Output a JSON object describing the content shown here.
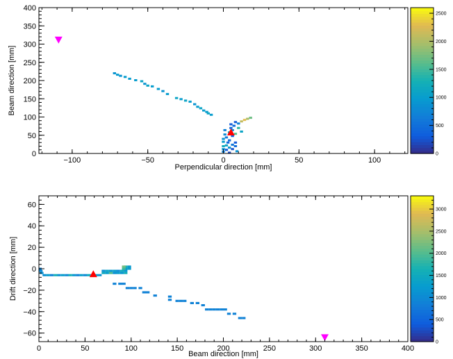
{
  "chart_data": [
    {
      "type": "heatmap",
      "xlabel": "Perpendicular direction [mm]",
      "ylabel": "Beam direction [mm]",
      "xlim": [
        -122,
        122
      ],
      "ylim": [
        0,
        400
      ],
      "xticks": [
        -100,
        -50,
        0,
        50,
        100
      ],
      "yticks": [
        0,
        50,
        100,
        150,
        200,
        250,
        300,
        350,
        400
      ],
      "xtick_labels": [
        "−100",
        "−50",
        "0",
        "50",
        "100"
      ],
      "ytick_labels": [
        "0",
        "50",
        "100",
        "150",
        "200",
        "250",
        "300",
        "350",
        "400"
      ],
      "zlim": [
        0,
        2600
      ],
      "colorbar_ticks": [
        0,
        500,
        1000,
        1500,
        2000,
        2500
      ],
      "colorbar_tick_labels": [
        "0",
        "500",
        "1000",
        "1500",
        "2000",
        "2500"
      ],
      "bin_width": 2,
      "bin_height": 4,
      "cells": [
        [
          -72,
          220,
          900
        ],
        [
          -70,
          216,
          1000
        ],
        [
          -68,
          213,
          900
        ],
        [
          -65,
          210,
          1000
        ],
        [
          -62,
          205,
          1000
        ],
        [
          -58,
          201,
          1000
        ],
        [
          -54,
          198,
          1100
        ],
        [
          -52,
          191,
          900
        ],
        [
          -50,
          186,
          1100
        ],
        [
          -47,
          184,
          1000
        ],
        [
          -43,
          177,
          1000
        ],
        [
          -40,
          171,
          900
        ],
        [
          -37,
          163,
          1000
        ],
        [
          -31,
          152,
          1100
        ],
        [
          -28,
          149,
          1000
        ],
        [
          -25,
          145,
          1100
        ],
        [
          -22,
          142,
          1000
        ],
        [
          -19,
          135,
          900
        ],
        [
          -17,
          128,
          1000
        ],
        [
          -15,
          124,
          1100
        ],
        [
          -13,
          118,
          1000
        ],
        [
          -11,
          114,
          1000
        ],
        [
          -10,
          110,
          1100
        ],
        [
          -8,
          106,
          1000
        ],
        [
          0,
          5,
          700
        ],
        [
          0,
          12,
          900
        ],
        [
          0,
          20,
          1200
        ],
        [
          0,
          32,
          1000
        ],
        [
          0,
          40,
          900
        ],
        [
          1,
          52,
          800
        ],
        [
          1,
          64,
          700
        ],
        [
          2,
          10,
          300
        ],
        [
          2,
          22,
          1100
        ],
        [
          2,
          44,
          600
        ],
        [
          3,
          30,
          400
        ],
        [
          4,
          2,
          200
        ],
        [
          4,
          16,
          900
        ],
        [
          4,
          36,
          500
        ],
        [
          4,
          58,
          1200
        ],
        [
          5,
          70,
          400
        ],
        [
          5,
          80,
          300
        ],
        [
          6,
          12,
          250
        ],
        [
          6,
          24,
          600
        ],
        [
          6,
          48,
          350
        ],
        [
          6,
          64,
          800
        ],
        [
          7,
          76,
          500
        ],
        [
          8,
          20,
          500
        ],
        [
          8,
          30,
          300
        ],
        [
          8,
          54,
          1600
        ],
        [
          8,
          86,
          300
        ],
        [
          9,
          6,
          900
        ],
        [
          10,
          70,
          1400
        ],
        [
          10,
          82,
          700
        ],
        [
          12,
          60,
          1100
        ],
        [
          12,
          88,
          2100
        ],
        [
          14,
          92,
          2300
        ],
        [
          16,
          95,
          2000
        ],
        [
          18,
          98,
          1700
        ]
      ],
      "markers": [
        {
          "shape": "triangle-up",
          "color": "#ff0000",
          "x": 5,
          "y": 58
        },
        {
          "shape": "triangle-down",
          "color": "#ff00ff",
          "x": -109,
          "y": 312
        }
      ]
    },
    {
      "type": "heatmap",
      "xlabel": "Beam direction [mm]",
      "ylabel": "Drift direction [mm]",
      "xlim": [
        0,
        400
      ],
      "ylim": [
        -68,
        68
      ],
      "xticks": [
        0,
        50,
        100,
        150,
        200,
        250,
        300,
        350,
        400
      ],
      "yticks": [
        -60,
        -40,
        -20,
        0,
        20,
        40,
        60
      ],
      "xtick_labels": [
        "0",
        "50",
        "100",
        "150",
        "200",
        "250",
        "300",
        "350",
        "400"
      ],
      "ytick_labels": [
        "−60",
        "−40",
        "−20",
        "0",
        "20",
        "40",
        "60"
      ],
      "zlim": [
        0,
        3300
      ],
      "colorbar_ticks": [
        0,
        500,
        1000,
        1500,
        2000,
        2500,
        3000
      ],
      "colorbar_tick_labels": [
        "0",
        "500",
        "1000",
        "1500",
        "2000",
        "2500",
        "3000"
      ],
      "bin_width": 4,
      "bin_height": 2,
      "cells": [
        [
          1,
          0,
          900
        ],
        [
          2,
          -2,
          1000
        ],
        [
          3,
          -4,
          1100
        ],
        [
          6,
          -6,
          1100
        ],
        [
          10,
          -6,
          1300
        ],
        [
          14,
          -6,
          900
        ],
        [
          18,
          -6,
          1600
        ],
        [
          22,
          -6,
          1100
        ],
        [
          26,
          -6,
          1300
        ],
        [
          30,
          -6,
          1000
        ],
        [
          34,
          -6,
          1600
        ],
        [
          38,
          -6,
          1200
        ],
        [
          42,
          -6,
          900
        ],
        [
          46,
          -6,
          1300
        ],
        [
          50,
          -6,
          1000
        ],
        [
          54,
          -6,
          1500
        ],
        [
          58,
          -6,
          1200
        ],
        [
          62,
          -6,
          1300
        ],
        [
          66,
          -6,
          1100
        ],
        [
          70,
          -4,
          1500
        ],
        [
          74,
          -4,
          1300
        ],
        [
          78,
          -4,
          2000
        ],
        [
          82,
          -4,
          1100
        ],
        [
          86,
          -4,
          1300
        ],
        [
          90,
          -4,
          1200
        ],
        [
          94,
          -4,
          1600
        ],
        [
          70,
          -2,
          1100
        ],
        [
          74,
          -2,
          1400
        ],
        [
          78,
          -2,
          1200
        ],
        [
          82,
          -2,
          1300
        ],
        [
          86,
          -2,
          1000
        ],
        [
          90,
          -2,
          1500
        ],
        [
          94,
          -2,
          1200
        ],
        [
          94,
          0,
          1300
        ],
        [
          94,
          2,
          1700
        ],
        [
          98,
          0,
          1300
        ],
        [
          98,
          2,
          1200
        ],
        [
          92,
          0,
          1900
        ],
        [
          92,
          2,
          2200
        ],
        [
          82,
          -14,
          900
        ],
        [
          88,
          -14,
          900
        ],
        [
          92,
          -14,
          900
        ],
        [
          96,
          -18,
          900
        ],
        [
          100,
          -18,
          900
        ],
        [
          104,
          -18,
          900
        ],
        [
          110,
          -18,
          900
        ],
        [
          114,
          -22,
          900
        ],
        [
          118,
          -22,
          900
        ],
        [
          126,
          -25,
          900
        ],
        [
          142,
          -26,
          900
        ],
        [
          142,
          -29,
          900
        ],
        [
          150,
          -30,
          900
        ],
        [
          154,
          -30,
          900
        ],
        [
          158,
          -30,
          900
        ],
        [
          166,
          -32,
          900
        ],
        [
          172,
          -32,
          900
        ],
        [
          178,
          -34,
          900
        ],
        [
          182,
          -38,
          900
        ],
        [
          186,
          -38,
          900
        ],
        [
          190,
          -38,
          900
        ],
        [
          194,
          -38,
          900
        ],
        [
          198,
          -38,
          900
        ],
        [
          202,
          -38,
          900
        ],
        [
          206,
          -42,
          900
        ],
        [
          212,
          -42,
          900
        ],
        [
          218,
          -46,
          900
        ],
        [
          222,
          -46,
          900
        ]
      ],
      "markers": [
        {
          "shape": "triangle-up",
          "color": "#ff0000",
          "x": 59,
          "y": -5
        },
        {
          "shape": "triangle-down",
          "color": "#ff00ff",
          "x": 310,
          "y": -64
        }
      ]
    }
  ]
}
